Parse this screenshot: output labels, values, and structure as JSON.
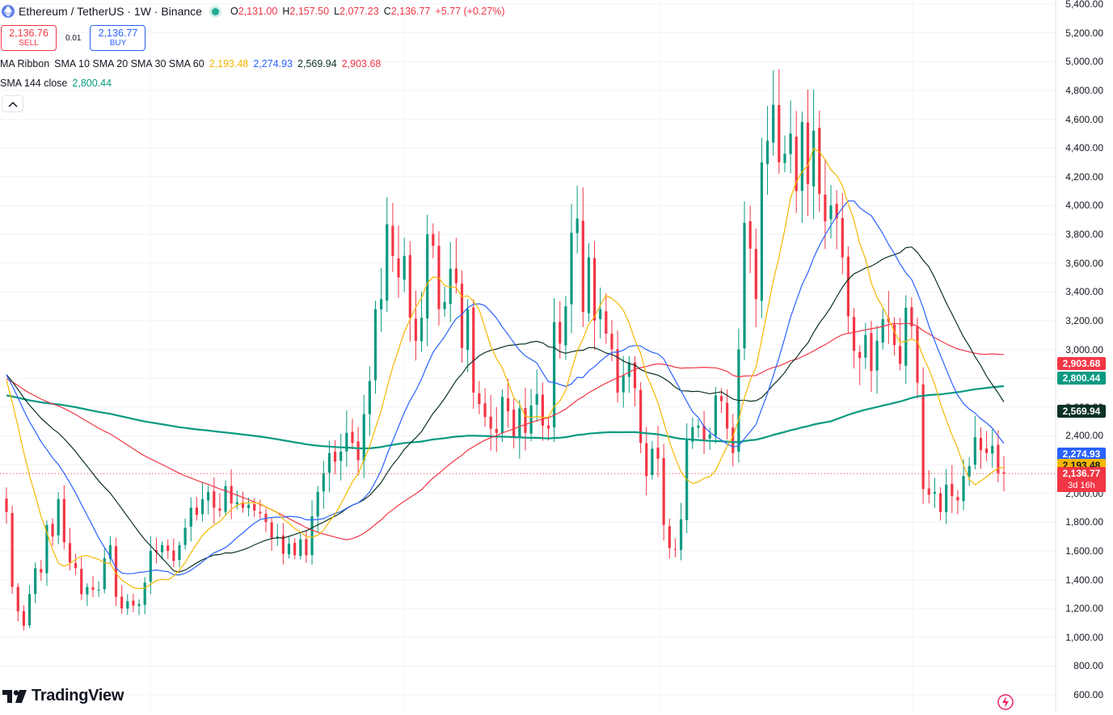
{
  "symbol": {
    "name": "Ethereum / TetherUS · 1W · Binance",
    "logo_icon": "ethereum-icon",
    "ohlc": {
      "o_label": "O",
      "o_value": "2,131.00",
      "h_label": "H",
      "h_value": "2,157.50",
      "l_label": "L",
      "l_value": "2,077.23",
      "c_label": "C",
      "c_value": "2,136.77",
      "change": "+5.77 (+0.27%)"
    }
  },
  "trade": {
    "sell_price": "2,136.76",
    "sell_label": "SELL",
    "spread": "0.01",
    "buy_price": "2,136.77",
    "buy_label": "BUY"
  },
  "indicators": {
    "ma_ribbon": {
      "name": "MA Ribbon",
      "params": "SMA 10 SMA 20 SMA 30 SMA 60",
      "values": [
        "2,193.48",
        "2,274.93",
        "2,569.94",
        "2,903.68"
      ]
    },
    "sma144": {
      "name": "SMA 144 close",
      "value": "2,800.44"
    }
  },
  "price_axis": {
    "labels": [
      "5,400.00",
      "5,200.00",
      "5,000.00",
      "4,800.00",
      "4,600.00",
      "4,400.00",
      "4,200.00",
      "4,000.00",
      "3,800.00",
      "3,600.00",
      "3,400.00",
      "3,200.00",
      "3,000.00",
      "2,800.00",
      "2,600.00",
      "2,400.00",
      "2,200.00",
      "2,000.00",
      "1,800.00",
      "1,600.00",
      "1,400.00",
      "1,200.00",
      "1,000.00",
      "800.00",
      "600.00"
    ],
    "tags": {
      "sma60": "2,903.68",
      "sma144": "2,800.44",
      "sma30": "2,569.94",
      "sma20": "2,274.93",
      "sma10": "2,193.48",
      "last": "2,136.77",
      "countdown": "3d 16h"
    }
  },
  "brand": {
    "name": "TradingView"
  },
  "colors": {
    "up": "#089981",
    "down": "#f23645",
    "sma10": "#f5b700",
    "sma20": "#2962ff",
    "sma30": "#0c3223",
    "sma60": "#f23645",
    "sma144": "#089981"
  },
  "chart_data": {
    "type": "candlestick",
    "interval": "1W",
    "ylim": [
      600,
      5400
    ],
    "closes": [
      1870,
      1350,
      1180,
      1080,
      1300,
      1480,
      1450,
      1780,
      1700,
      1960,
      1660,
      1520,
      1480,
      1300,
      1350,
      1330,
      1330,
      1550,
      1640,
      1280,
      1200,
      1250,
      1220,
      1230,
      1380,
      1600,
      1590,
      1640,
      1600,
      1530,
      1640,
      1760,
      1900,
      1850,
      1960,
      2010,
      1900,
      1880,
      2050,
      1930,
      1940,
      1900,
      1920,
      1880,
      1860,
      1800,
      1690,
      1700,
      1580,
      1650,
      1570,
      1680,
      1570,
      1840,
      2010,
      2140,
      2280,
      2220,
      2290,
      2420,
      2350,
      2230,
      2550,
      2780,
      3280,
      3350,
      3870,
      3650,
      3500,
      3650,
      3220,
      3060,
      3220,
      3800,
      3720,
      3280,
      3330,
      3560,
      3460,
      3010,
      3280,
      2700,
      2620,
      2530,
      2450,
      2420,
      2670,
      2570,
      2390,
      2590,
      2420,
      2610,
      2690,
      2470,
      2450,
      3190,
      3040,
      3300,
      3810,
      3910,
      3260,
      3640,
      3200,
      3280,
      3110,
      3000,
      2700,
      2820,
      2910,
      2730,
      2350,
      2120,
      2310,
      2240,
      1780,
      1620,
      1610,
      1820,
      2370,
      2460,
      2470,
      2370,
      2410,
      2680,
      2640,
      2450,
      2280,
      3000,
      3880,
      3700,
      3350,
      4300,
      4450,
      4700,
      4300,
      4360,
      4500,
      4100,
      4580,
      4150,
      4520,
      4080,
      3890,
      4000,
      3910,
      3640,
      3230,
      2990,
      2940,
      3100,
      2850,
      3060,
      3210,
      3190,
      3030,
      2900,
      3290,
      3160,
      2770,
      2030,
      1990,
      2010,
      1870,
      2060,
      1980,
      1950,
      2120,
      2190,
      2390,
      2300,
      2280,
      2330,
      2140,
      2137
    ],
    "sma_lines": [
      "SMA 10",
      "SMA 20",
      "SMA 30",
      "SMA 60",
      "SMA 144 close"
    ]
  }
}
